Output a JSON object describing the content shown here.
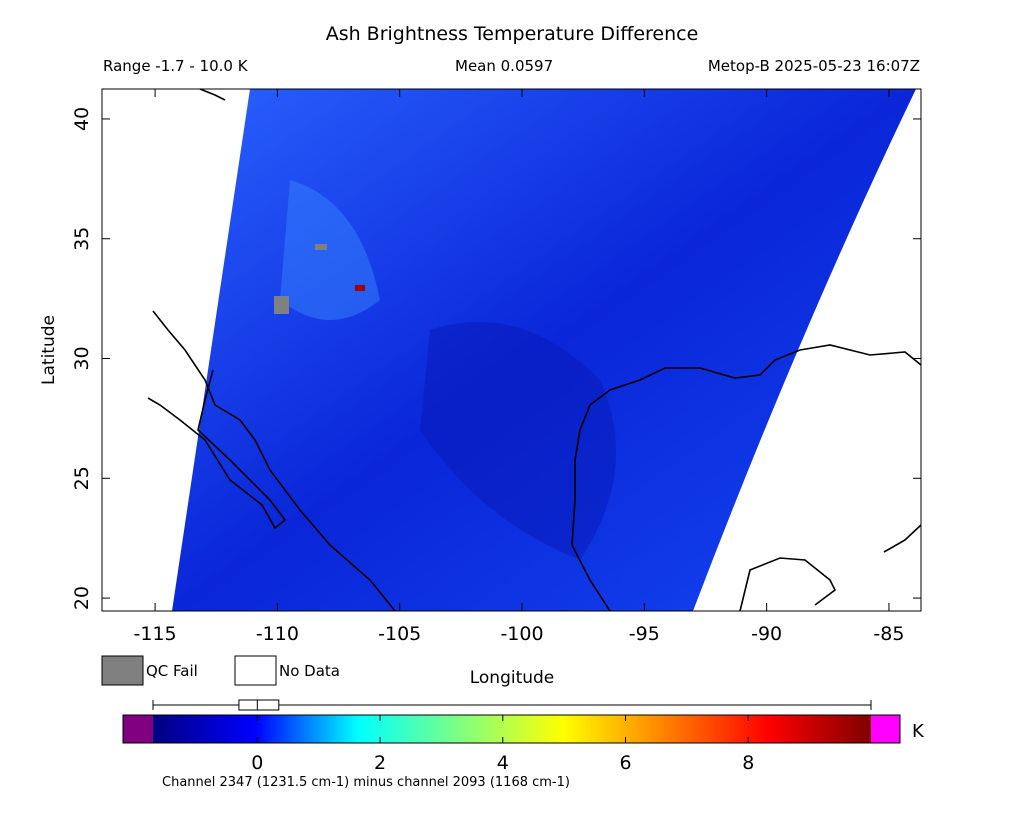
{
  "chart_data": {
    "type": "map",
    "title": "Ash Brightness Temperature Difference",
    "range_label": "Range -1.7 - 10.0 K",
    "mean_label": "Mean 0.0597",
    "source_label": "Metop-B 2025-05-23 16:07Z",
    "xlabel": "Longitude",
    "ylabel": "Latitude",
    "xlim": [
      -117.17,
      -83.69
    ],
    "ylim": [
      19.46,
      41.25
    ],
    "xticks": [
      -115,
      -110,
      -105,
      -100,
      -95,
      -90,
      -85
    ],
    "yticks": [
      20,
      25,
      30,
      35,
      40
    ],
    "legend": [
      {
        "name": "QC Fail",
        "color": "#808080"
      },
      {
        "name": "No Data",
        "color": "#ffffff"
      }
    ],
    "colorbar": {
      "unit": "K",
      "clim": [
        -1.7,
        10.0
      ],
      "ticks": [
        0,
        2,
        4,
        6,
        8
      ],
      "colors": [
        "#000080",
        "#0000ff",
        "#00ffff",
        "#80ff80",
        "#ffff00",
        "#ff8000",
        "#ff0000",
        "#800000"
      ],
      "under_color": "#800080",
      "over_color": "#ff00ff",
      "box": {
        "whisker_low": -1.7,
        "q1": -0.3,
        "median": 0.0,
        "q3": 0.35,
        "whisker_high": 10.0
      },
      "footnote": "Channel 2347 (1231.5 cm-1) minus channel 2093 (1168 cm-1)"
    }
  }
}
